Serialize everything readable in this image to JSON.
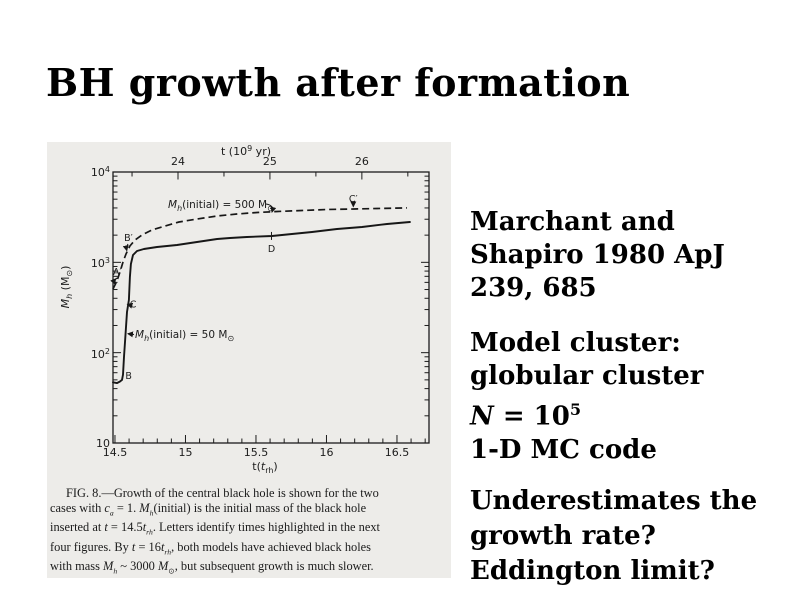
{
  "slide": {
    "title": "BH growth after formation"
  },
  "right_column": {
    "paragraphs": [
      {
        "lines": [
          [
            [
              "",
              "Marchant and"
            ]
          ],
          [
            [
              "",
              "Shapiro 1980 ApJ"
            ]
          ],
          [
            [
              "",
              "239, 685"
            ]
          ]
        ]
      },
      {
        "lines": [
          [
            [
              "",
              "Model cluster:"
            ]
          ],
          [
            [
              "",
              "globular cluster"
            ]
          ],
          [
            [
              "i",
              "N"
            ],
            [
              "",
              " = 10"
            ],
            [
              "sup",
              "5"
            ]
          ],
          [
            [
              "",
              "1-D MC code"
            ]
          ]
        ]
      },
      {
        "lines": [
          [
            [
              "",
              "Underestimates the"
            ]
          ],
          [
            [
              "",
              "growth rate?"
            ]
          ],
          [
            [
              "",
              "Eddington limit?"
            ]
          ]
        ]
      }
    ]
  },
  "figure": {
    "caption": {
      "lines": [
        [
          [
            "",
            "FIG. 8.—Growth of the central black hole is shown for the two"
          ]
        ],
        [
          [
            "",
            "cases with "
          ],
          [
            "i",
            "c"
          ],
          [
            "isub",
            "a"
          ],
          [
            "",
            " = 1. "
          ],
          [
            "i",
            "M"
          ],
          [
            "isub",
            "h"
          ],
          [
            "",
            "(initial) is the initial mass of the black hole"
          ]
        ],
        [
          [
            "",
            "inserted at "
          ],
          [
            "i",
            "t"
          ],
          [
            "",
            " = 14.5"
          ],
          [
            "i",
            "t"
          ],
          [
            "isub",
            "rh"
          ],
          [
            "",
            ". Letters identify times highlighted in the next"
          ]
        ],
        [
          [
            "",
            "four figures. By "
          ],
          [
            "i",
            "t"
          ],
          [
            "",
            " = 16"
          ],
          [
            "i",
            "t"
          ],
          [
            "isub",
            "rh"
          ],
          [
            "",
            ", both models have achieved black holes"
          ]
        ],
        [
          [
            "",
            "with mass "
          ],
          [
            "i",
            "M"
          ],
          [
            "isub",
            "h"
          ],
          [
            "",
            " ~ 3000 "
          ],
          [
            "i",
            "M"
          ],
          [
            "sub",
            "⊙"
          ],
          [
            "",
            ", but subsequent growth is much slower."
          ]
        ]
      ]
    },
    "chart_data": {
      "type": "line",
      "title": "",
      "xlabel_bottom": "t(t_rh)",
      "xlabel_top": "t(10^9 yr)",
      "ylabel": "M_h (M_sun)",
      "x_axis_bottom": {
        "ticks": [
          14.5,
          15,
          15.5,
          16,
          16.5
        ],
        "range": [
          14.486,
          16.727
        ],
        "label_parts": [
          [
            "",
            "t("
          ],
          [
            "i",
            "t"
          ],
          [
            "sub",
            "rh"
          ],
          [
            "",
            ")"
          ]
        ]
      },
      "x_axis_top": {
        "ticks": [
          24,
          25,
          26
        ],
        "tick_positions_trh": [
          14.947,
          15.599,
          16.251
        ],
        "minor_positions_trh": [
          14.621,
          15.273,
          15.925,
          16.577
        ],
        "label_parts": [
          [
            "",
            "t (10"
          ],
          [
            "sup",
            "9"
          ],
          [
            "",
            " yr)"
          ]
        ]
      },
      "y_axis": {
        "scale": "log",
        "ticks": [
          10000,
          1000,
          100,
          10
        ],
        "tick_label_parts": [
          [
            [
              "",
              "10"
            ],
            [
              "sup",
              "4"
            ]
          ],
          [
            [
              "",
              "10"
            ],
            [
              "sup",
              "3"
            ]
          ],
          [
            [
              "",
              "10"
            ],
            [
              "sup",
              "2"
            ]
          ],
          [
            [
              "",
              "10"
            ]
          ]
        ],
        "label_parts": [
          [
            "i",
            "M"
          ],
          [
            "isub",
            "h"
          ],
          [
            "",
            " (M"
          ],
          [
            "sub",
            "⊙"
          ],
          [
            "",
            ")"
          ]
        ]
      },
      "series": [
        {
          "name": "Mh(initial) = 500 Msun",
          "style": "dashed",
          "label_parts": [
            [
              "i",
              "M"
            ],
            [
              "isub",
              "h"
            ],
            [
              "",
              "(initial) = 500 M"
            ],
            [
              "sub",
              "⊙"
            ]
          ],
          "points": [
            [
              14.486,
              507
            ],
            [
              14.514,
              621
            ],
            [
              14.536,
              782
            ],
            [
              14.557,
              1009
            ],
            [
              14.578,
              1236
            ],
            [
              14.606,
              1517
            ],
            [
              14.642,
              1766
            ],
            [
              14.692,
              2009
            ],
            [
              14.762,
              2281
            ],
            [
              14.855,
              2525
            ],
            [
              14.954,
              2798
            ],
            [
              15.082,
              3020
            ],
            [
              15.224,
              3258
            ],
            [
              15.365,
              3428
            ],
            [
              15.507,
              3565
            ],
            [
              15.649,
              3656
            ],
            [
              15.826,
              3750
            ],
            [
              16.004,
              3846
            ],
            [
              16.195,
              3899
            ],
            [
              16.358,
              3944
            ],
            [
              16.571,
              4000
            ]
          ]
        },
        {
          "name": "Mh(initial) = 50 Msun",
          "style": "solid",
          "label_parts": [
            [
              "i",
              "M"
            ],
            [
              "isub",
              "h"
            ],
            [
              "",
              "(initial) = 50 M"
            ],
            [
              "sub",
              "⊙"
            ]
          ],
          "points": [
            [
              14.486,
              47
            ],
            [
              14.514,
              46
            ],
            [
              14.536,
              48
            ],
            [
              14.55,
              50
            ],
            [
              14.557,
              57
            ],
            [
              14.564,
              90
            ],
            [
              14.571,
              131
            ],
            [
              14.585,
              282
            ],
            [
              14.599,
              383
            ],
            [
              14.606,
              688
            ],
            [
              14.613,
              959
            ],
            [
              14.628,
              1206
            ],
            [
              14.656,
              1336
            ],
            [
              14.705,
              1405
            ],
            [
              14.798,
              1479
            ],
            [
              14.94,
              1557
            ],
            [
              15.082,
              1679
            ],
            [
              15.224,
              1813
            ],
            [
              15.316,
              1859
            ],
            [
              15.436,
              1907
            ],
            [
              15.614,
              1956
            ],
            [
              15.755,
              2059
            ],
            [
              15.897,
              2167
            ],
            [
              16.075,
              2339
            ],
            [
              16.252,
              2460
            ],
            [
              16.429,
              2655
            ],
            [
              16.592,
              2793
            ]
          ]
        }
      ],
      "point_labels": [
        {
          "text": "A′",
          "t": 14.517,
          "M": 780
        },
        {
          "text": "B′",
          "t": 14.596,
          "M": 1850
        },
        {
          "text": "C′",
          "t": 16.19,
          "M": 5050
        },
        {
          "text": "B",
          "t": 14.597,
          "M": 55
        },
        {
          "text": "C",
          "t": 14.628,
          "M": 340
        },
        {
          "text": "D",
          "t": 15.61,
          "M": 1400,
          "tick_M": 1960
        }
      ]
    }
  }
}
